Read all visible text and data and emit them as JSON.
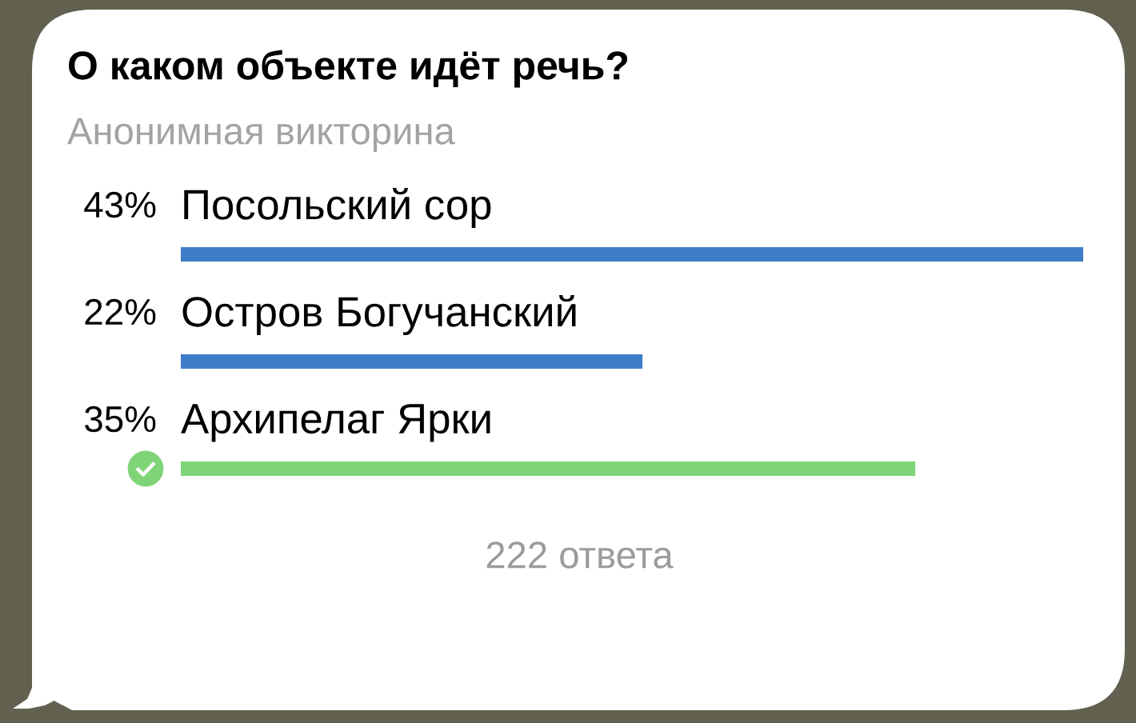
{
  "chart_data": {
    "type": "bar",
    "orientation": "horizontal",
    "title": "О каком объекте идёт речь?",
    "subtitle": "Анонимная викторина",
    "categories": [
      "Посольский сор",
      "Остров Богучанский",
      "Архипелаг Ярки"
    ],
    "values": [
      43,
      22,
      35
    ],
    "colors": [
      "#3e7ec9",
      "#3e7ec9",
      "#80d478"
    ],
    "value_labels": [
      "43%",
      "22%",
      "35%"
    ],
    "annotations": [
      "222 ответа"
    ]
  }
}
